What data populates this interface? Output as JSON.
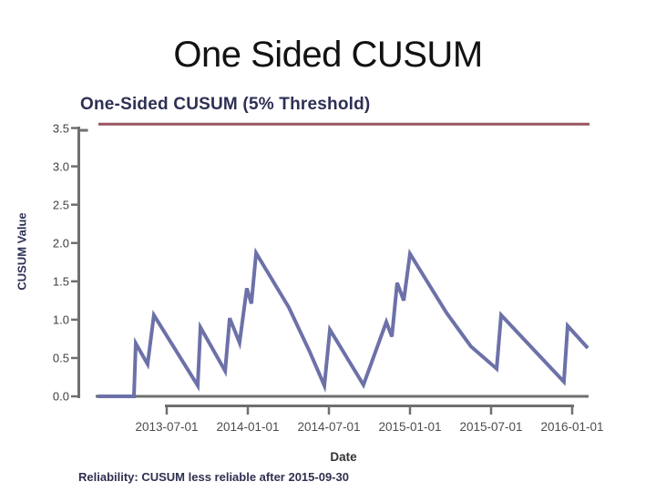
{
  "slide": {
    "title": "One Sided CUSUM"
  },
  "chart": {
    "title": "One-Sided CUSUM (5% Threshold)",
    "xlabel": "Date",
    "ylabel": "CUSUM Value",
    "footnote": "Reliability: CUSUM less reliable after 2015-09-30",
    "colors": {
      "line": "#6c71a8",
      "threshold": "#9a5660",
      "axis": "#6f6f6f",
      "title_text": "#2d3054",
      "slide_title_text": "#121212",
      "tick_label": "#3f3f3f",
      "date_label": "#4c4c4c",
      "footnote_text": "#2f3150"
    }
  },
  "chart_data": {
    "type": "line",
    "title": "One-Sided CUSUM (5% Threshold)",
    "xlabel": "Date",
    "ylabel": "CUSUM Value",
    "footnote": "Reliability: CUSUM less reliable after 2015-09-30",
    "ylim": [
      0,
      3.5
    ],
    "grid": false,
    "legend": "none",
    "y_ticks": [
      3.5,
      3.0,
      2.5,
      2.0,
      1.5,
      1.0,
      0.5,
      0.0
    ],
    "y_tick_labels": [
      "3.5",
      "3.0",
      "2.5",
      "2.0",
      "1.5",
      "1.0",
      "0.5",
      "0.0"
    ],
    "x_ticks": [
      {
        "label": "2013-07-01",
        "year": 2013.5
      },
      {
        "label": "2014-01-01",
        "year": 2014.0
      },
      {
        "label": "2014-07-01",
        "year": 2014.5
      },
      {
        "label": "2015-01-01",
        "year": 2015.0
      },
      {
        "label": "2015-07-01",
        "year": 2015.5
      },
      {
        "label": "2016-01-01",
        "year": 2016.0
      }
    ],
    "threshold": {
      "name": "5% Threshold",
      "value": 3.55
    },
    "series": [
      {
        "name": "One-sided CUSUM value",
        "points": [
          [
            2013.073,
            0.0
          ],
          [
            2013.298,
            0.0
          ],
          [
            2013.309,
            0.69
          ],
          [
            2013.382,
            0.42
          ],
          [
            2013.421,
            1.06
          ],
          [
            2013.691,
            0.14
          ],
          [
            2013.708,
            0.9
          ],
          [
            2013.86,
            0.33
          ],
          [
            2013.888,
            1.02
          ],
          [
            2013.949,
            0.7
          ],
          [
            2013.994,
            1.41
          ],
          [
            2014.022,
            1.21
          ],
          [
            2014.051,
            1.87
          ],
          [
            2014.253,
            1.16
          ],
          [
            2014.382,
            0.58
          ],
          [
            2014.472,
            0.14
          ],
          [
            2014.506,
            0.87
          ],
          [
            2014.713,
            0.15
          ],
          [
            2014.854,
            0.97
          ],
          [
            2014.888,
            0.78
          ],
          [
            2014.921,
            1.48
          ],
          [
            2014.961,
            1.25
          ],
          [
            2015.0,
            1.86
          ],
          [
            2015.225,
            1.09
          ],
          [
            2015.376,
            0.65
          ],
          [
            2015.534,
            0.36
          ],
          [
            2015.562,
            1.06
          ],
          [
            2015.949,
            0.19
          ],
          [
            2015.972,
            0.92
          ],
          [
            2016.096,
            0.63
          ]
        ]
      }
    ]
  }
}
